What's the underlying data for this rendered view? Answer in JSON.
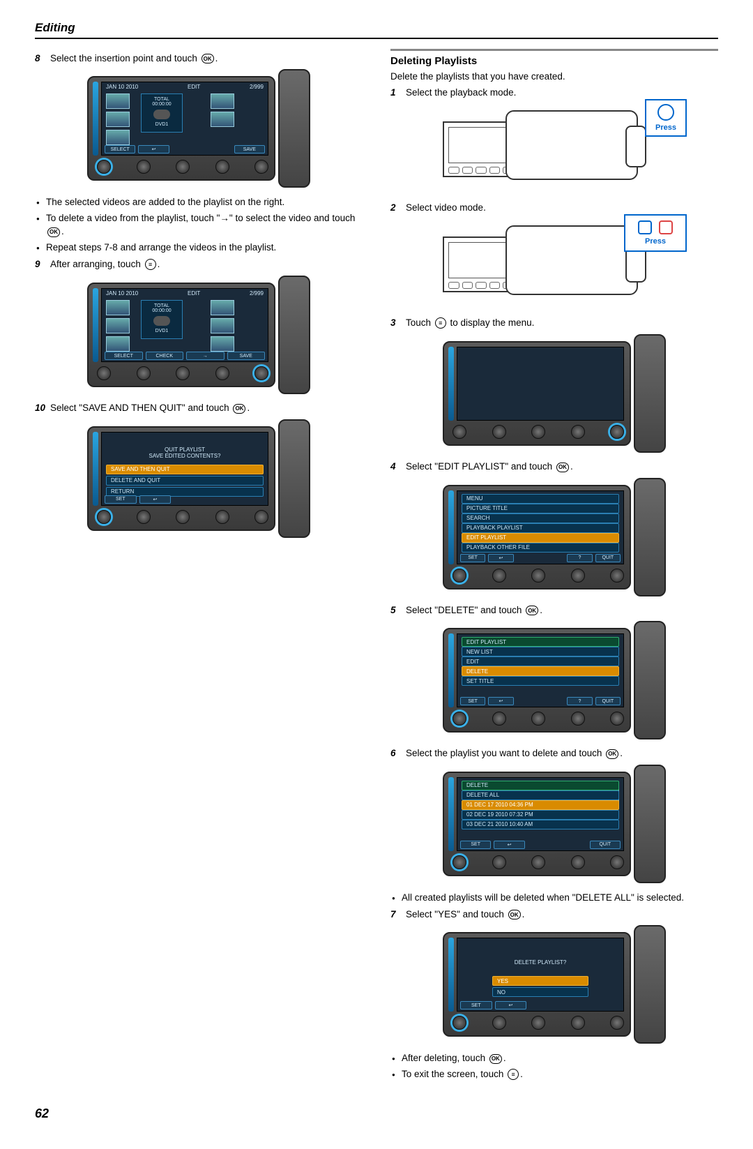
{
  "header": "Editing",
  "page_number": "62",
  "left": {
    "step8": {
      "num": "8",
      "text": "Select the insertion point and touch "
    },
    "fig8": {
      "title_left": "JAN 10 2010",
      "title_mid": "EDIT",
      "title_right": "2/999",
      "total_label": "TOTAL",
      "total_time": "00:00:00",
      "dvd_label": "DVD1",
      "btn_left": "SELECT",
      "btn_back": "↩",
      "btn_right": "SAVE"
    },
    "bullets8": [
      "The selected videos are added to the playlist on the right.",
      "To delete a video from the playlist, touch \"→\" to select the video and touch ",
      "Repeat steps 7-8 and arrange the videos in the playlist."
    ],
    "step9": {
      "num": "9",
      "text": "After arranging, touch "
    },
    "fig9": {
      "title_left": "JAN 10 2010",
      "title_mid": "EDIT",
      "title_right": "2/999",
      "total_label": "TOTAL",
      "total_time": "00:00:00",
      "dvd_label": "DVD1",
      "btn_left": "SELECT",
      "btn_check": "CHECK",
      "btn_arrow": "→",
      "btn_right": "SAVE"
    },
    "step10": {
      "num": "10",
      "text": "Select \"SAVE AND THEN QUIT\" and touch "
    },
    "fig10": {
      "dialog1": "QUIT PLAYLIST",
      "dialog2": "SAVE EDITED CONTENTS?",
      "opt1": "SAVE AND THEN QUIT",
      "opt2": "DELETE AND QUIT",
      "opt3": "RETURN",
      "btn_set": "SET",
      "btn_back": "↩"
    }
  },
  "right": {
    "heading": "Deleting Playlists",
    "intro": "Delete the playlists that you have created.",
    "step1": {
      "num": "1",
      "text": "Select the playback mode."
    },
    "press_label": "Press",
    "step2": {
      "num": "2",
      "text": "Select video mode."
    },
    "step3": {
      "num": "3",
      "text": "Touch ",
      "text2": " to display the menu."
    },
    "step4": {
      "num": "4",
      "text": "Select \"EDIT PLAYLIST\" and touch "
    },
    "fig4": {
      "items": [
        "MENU",
        "PICTURE TITLE",
        "SEARCH",
        "PLAYBACK PLAYLIST",
        "EDIT PLAYLIST",
        "PLAYBACK OTHER FILE"
      ],
      "sel_index": 4,
      "btn_set": "SET",
      "btn_back": "↩",
      "btn_q": "?",
      "btn_quit": "QUIT"
    },
    "step5": {
      "num": "5",
      "text": "Select \"DELETE\" and touch "
    },
    "fig5": {
      "header": "EDIT PLAYLIST",
      "items": [
        "NEW LIST",
        "EDIT",
        "DELETE",
        "SET TITLE"
      ],
      "sel_index": 2,
      "btn_set": "SET",
      "btn_back": "↩",
      "btn_q": "?",
      "btn_quit": "QUIT"
    },
    "step6": {
      "num": "6",
      "text": "Select the playlist you want to delete and touch "
    },
    "fig6": {
      "header": "DELETE",
      "items": [
        "DELETE ALL",
        "01 DEC 17 2010 04:36 PM",
        "02 DEC 19 2010 07:32 PM",
        "03 DEC 21 2010 10:40 AM"
      ],
      "sel_index": 1,
      "btn_set": "SET",
      "btn_back": "↩",
      "btn_quit": "QUIT"
    },
    "bullets6": [
      "All created playlists will be deleted when \"DELETE ALL\" is selected."
    ],
    "step7": {
      "num": "7",
      "text": "Select \"YES\" and touch "
    },
    "fig7": {
      "dialog": "DELETE PLAYLIST?",
      "opt1": "YES",
      "opt2": "NO",
      "btn_set": "SET",
      "btn_back": "↩"
    },
    "bullets7": [
      "After deleting, touch ",
      "To exit the screen, touch "
    ]
  }
}
